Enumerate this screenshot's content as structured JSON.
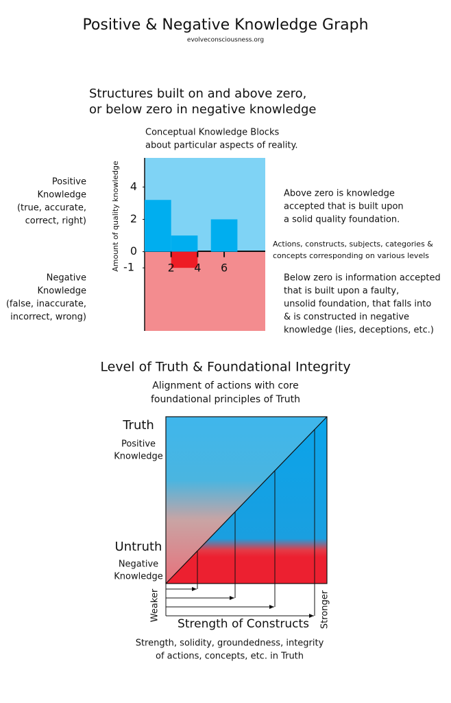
{
  "header": {
    "title": "Positive & Negative Knowledge Graph",
    "source": "evolveconsciousness.org"
  },
  "graph": {
    "heading": [
      "Structures built on and above zero,",
      "or below zero in negative knowledge"
    ],
    "caption": [
      "Conceptual Knowledge Blocks",
      "about particular aspects of reality."
    ],
    "y_axis_label": "Amount of quality knowledge",
    "ylim": [
      -4.9,
      5.8
    ],
    "xlim": [
      0,
      9.1
    ],
    "yticks": [
      4,
      2,
      0,
      -1
    ],
    "xticks": [
      2,
      4,
      6
    ],
    "blocks": [
      {
        "start": 0,
        "end": 2,
        "value": 3.2
      },
      {
        "start": 2,
        "end": 4,
        "value": 1
      },
      {
        "start": 2,
        "end": 4,
        "value": -1
      },
      {
        "start": 5,
        "end": 7,
        "value": 2
      }
    ],
    "positive_label": [
      "Positive",
      "Knowledge",
      "(true, accurate,",
      "correct, right)"
    ],
    "negative_label": [
      "Negative",
      "Knowledge",
      "(false, inaccurate,",
      "incorrect, wrong)"
    ],
    "above_note": [
      "Above zero is knowledge",
      "accepted that is built upon",
      "a solid quality foundation."
    ],
    "axis_note": [
      "Actions, constructs, subjects, categories &",
      "concepts corresponding on various levels"
    ],
    "below_note": [
      "Below zero is information accepted",
      "that is built upon a faulty,",
      "unsolid foundation, that falls into",
      "& is constructed in negative",
      "knowledge (lies, deceptions, etc.)"
    ]
  },
  "integrity": {
    "heading": "Level of Truth & Foundational Integrity",
    "caption": [
      "Alignment of actions with core",
      "foundational principles of Truth"
    ],
    "truth": "Truth",
    "positive_label": [
      "Positive",
      "Knowledge"
    ],
    "untruth": "Untruth",
    "negative_label": [
      "Negative",
      "Knowledge"
    ],
    "weaker": "Weaker",
    "stronger": "Stronger",
    "x_axis_label": "Strength of Constructs",
    "footnote": [
      "Strength, solidity, groundedness, integrity",
      "of actions, concepts, etc. in Truth"
    ]
  }
}
